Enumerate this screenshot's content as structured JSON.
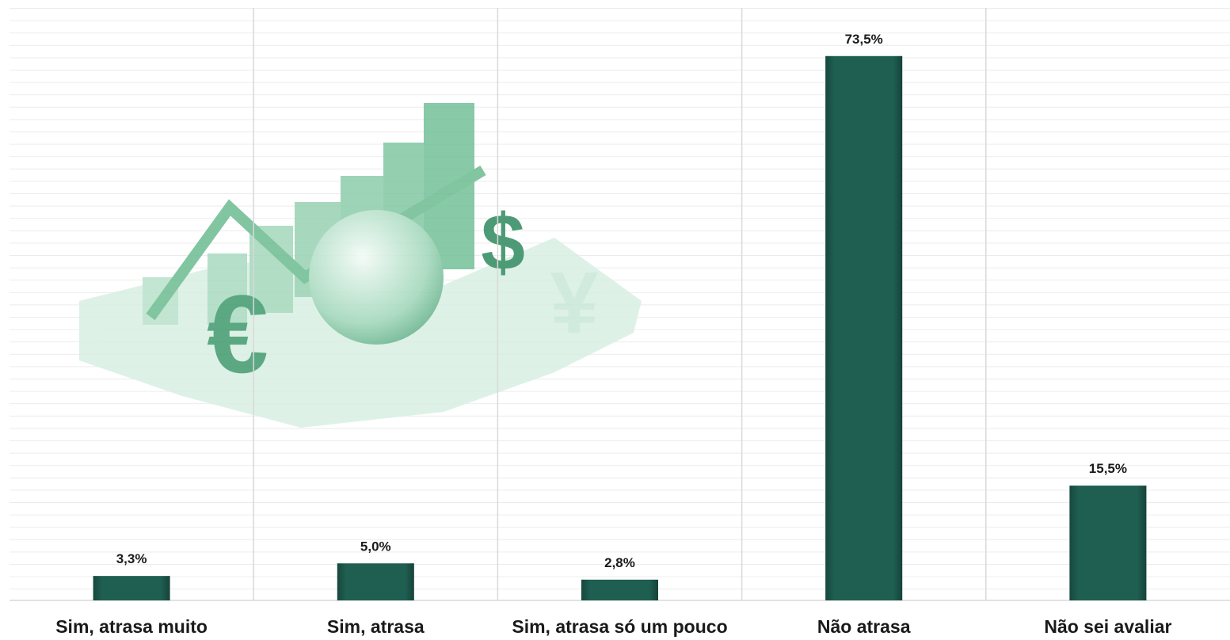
{
  "chart_data": {
    "type": "bar",
    "categories": [
      "Sim, atrasa muito",
      "Sim, atrasa",
      "Sim, atrasa só um pouco",
      "Não atrasa",
      "Não sei avaliar"
    ],
    "values": [
      3.3,
      5.0,
      2.8,
      73.5,
      15.5
    ],
    "value_labels": [
      "3,3%",
      "5,0%",
      "2,8%",
      "73,5%",
      "15,5%"
    ],
    "color": "#1f5f52",
    "ylim": [
      0,
      80
    ]
  }
}
